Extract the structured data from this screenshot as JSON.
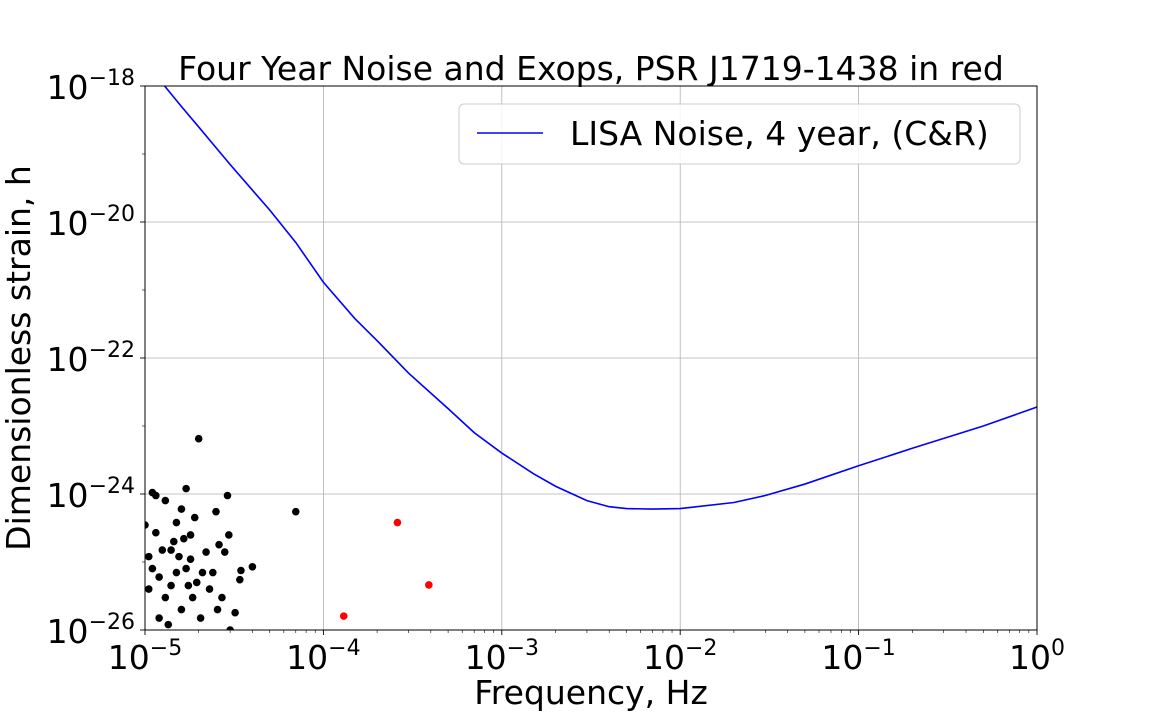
{
  "chart_data": {
    "type": "scatter",
    "title": "Four Year Noise and Exops, PSR J1719-1438 in red",
    "xlabel": "Frequency, Hz",
    "ylabel": "Dimensionless strain, h",
    "xscale": "log",
    "yscale": "log",
    "xlim": [
      1e-05,
      1
    ],
    "ylim": [
      1e-26,
      1e-18
    ],
    "x_ticks": [
      {
        "value": 1e-05,
        "base": "10",
        "exp": "−5"
      },
      {
        "value": 0.0001,
        "base": "10",
        "exp": "−4"
      },
      {
        "value": 0.001,
        "base": "10",
        "exp": "−3"
      },
      {
        "value": 0.01,
        "base": "10",
        "exp": "−2"
      },
      {
        "value": 0.1,
        "base": "10",
        "exp": "−1"
      },
      {
        "value": 1,
        "base": "10",
        "exp": "0"
      }
    ],
    "y_ticks": [
      {
        "value": 1e-26,
        "base": "10",
        "exp": "−26"
      },
      {
        "value": 1e-24,
        "base": "10",
        "exp": "−24"
      },
      {
        "value": 1e-22,
        "base": "10",
        "exp": "−22"
      },
      {
        "value": 1e-20,
        "base": "10",
        "exp": "−20"
      },
      {
        "value": 1e-18,
        "base": "10",
        "exp": "−18"
      }
    ],
    "grid": true,
    "legend": {
      "placement": "top-right",
      "entries": [
        {
          "label": "LISA Noise, 4 year, (C&R)",
          "color": "#0000ff"
        }
      ]
    },
    "series": [
      {
        "name": "LISA Noise, 4 year, (C&R)",
        "kind": "line",
        "color": "#0000ff",
        "points": [
          [
            1e-05,
            1.5e-18
          ],
          [
            1.25e-05,
            1.1e-18
          ],
          [
            1.6e-05,
            5e-19
          ],
          [
            2e-05,
            2.5e-19
          ],
          [
            3e-05,
            7e-20
          ],
          [
            5e-05,
            1.5e-20
          ],
          [
            7e-05,
            5e-21
          ],
          [
            0.0001,
            1.3e-21
          ],
          [
            0.00015,
            3.8e-22
          ],
          [
            0.0002,
            1.8e-22
          ],
          [
            0.0003,
            6e-23
          ],
          [
            0.0005,
            1.8e-23
          ],
          [
            0.0007,
            8e-24
          ],
          [
            0.001,
            4e-24
          ],
          [
            0.0015,
            2e-24
          ],
          [
            0.002,
            1.3e-24
          ],
          [
            0.003,
            8e-25
          ],
          [
            0.004,
            6.5e-25
          ],
          [
            0.005,
            6.1e-25
          ],
          [
            0.007,
            6e-25
          ],
          [
            0.01,
            6.1e-25
          ],
          [
            0.02,
            7.5e-25
          ],
          [
            0.03,
            9.5e-25
          ],
          [
            0.05,
            1.4e-24
          ],
          [
            0.1,
            2.6e-24
          ],
          [
            0.2,
            4.7e-24
          ],
          [
            0.5,
            1e-23
          ],
          [
            1.0,
            1.9e-23
          ]
        ]
      },
      {
        "name": "",
        "kind": "scatter",
        "color": "#000000",
        "points": [
          [
            1e-05,
            3.5e-25
          ],
          [
            1.05e-05,
            1.2e-25
          ],
          [
            1.05e-05,
            4e-26
          ],
          [
            1.1e-05,
            8e-26
          ],
          [
            1.1e-05,
            1.05e-24
          ],
          [
            1.15e-05,
            9.5e-25
          ],
          [
            1.15e-05,
            2.7e-25
          ],
          [
            1.2e-05,
            6e-26
          ],
          [
            1.2e-05,
            1.5e-26
          ],
          [
            1.25e-05,
            1.5e-25
          ],
          [
            1.3e-05,
            8e-25
          ],
          [
            1.3e-05,
            3e-26
          ],
          [
            1.35e-05,
            1.2e-26
          ],
          [
            1.4e-05,
            1.5e-25
          ],
          [
            1.4e-05,
            4.5e-26
          ],
          [
            1.45e-05,
            2e-25
          ],
          [
            1.5e-05,
            3.8e-25
          ],
          [
            1.5e-05,
            7e-26
          ],
          [
            1.55e-05,
            1.2e-25
          ],
          [
            1.6e-05,
            6e-25
          ],
          [
            1.6e-05,
            2e-26
          ],
          [
            1.65e-05,
            2.2e-25
          ],
          [
            1.7e-05,
            1.2e-24
          ],
          [
            1.7e-05,
            8e-26
          ],
          [
            1.75e-05,
            4.5e-26
          ],
          [
            1.8e-05,
            2.5e-25
          ],
          [
            1.8e-05,
            1.1e-25
          ],
          [
            1.85e-05,
            3e-26
          ],
          [
            1.9e-05,
            4.5e-25
          ],
          [
            1.95e-05,
            5e-26
          ],
          [
            2e-05,
            6.5e-24
          ],
          [
            2.05e-05,
            1.5e-26
          ],
          [
            2.1e-05,
            7e-26
          ],
          [
            2.2e-05,
            1.4e-25
          ],
          [
            2.3e-05,
            4e-26
          ],
          [
            2.4e-05,
            7e-26
          ],
          [
            2.5e-05,
            5.5e-25
          ],
          [
            2.55e-05,
            2e-26
          ],
          [
            2.6e-05,
            1.8e-25
          ],
          [
            2.7e-05,
            3e-26
          ],
          [
            2.8e-05,
            1.4e-25
          ],
          [
            2.9e-05,
            9.5e-25
          ],
          [
            2.95e-05,
            2.5e-25
          ],
          [
            3e-05,
            1e-26
          ],
          [
            3.2e-05,
            1.8e-26
          ],
          [
            3.4e-05,
            5.5e-26
          ],
          [
            3.45e-05,
            7.5e-26
          ],
          [
            4e-05,
            8.5e-26
          ],
          [
            7e-05,
            5.5e-25
          ]
        ]
      },
      {
        "name": "",
        "kind": "scatter",
        "color": "#ff0000",
        "points": [
          [
            0.00013,
            1.6e-26
          ],
          [
            0.00026,
            3.8e-25
          ],
          [
            0.00039,
            4.6e-26
          ]
        ]
      }
    ]
  }
}
